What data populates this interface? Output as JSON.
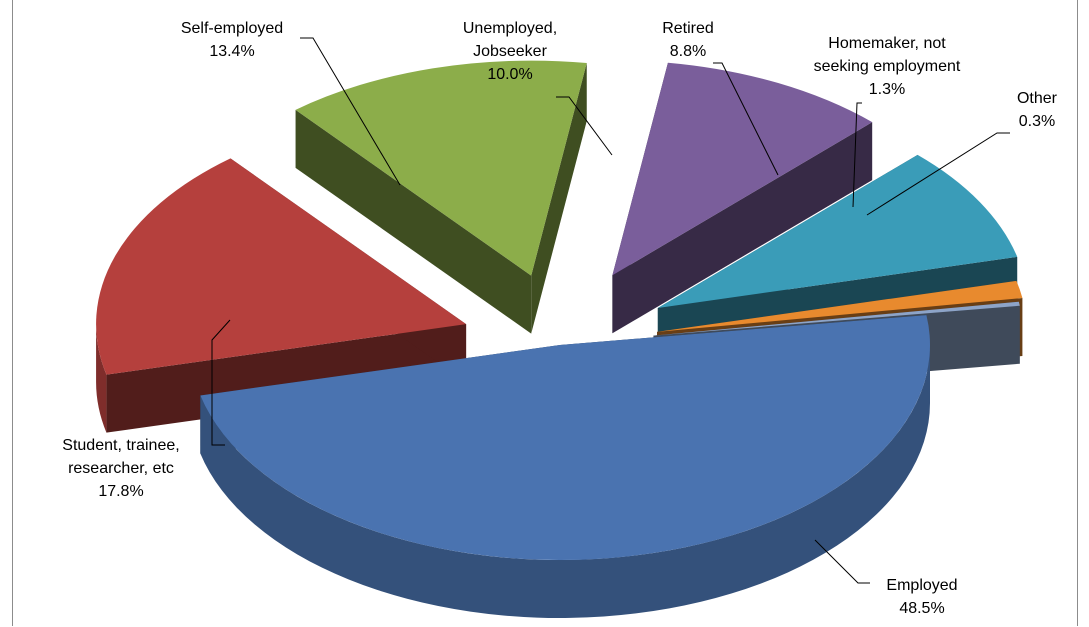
{
  "chart_data": {
    "type": "pie",
    "title": "",
    "three_d": true,
    "exploded": true,
    "slices": [
      {
        "label": "Employed",
        "value": 48.5,
        "value_label": "48.5%",
        "color": "#4a73b0"
      },
      {
        "label": "Student, trainee, researcher, etc",
        "value": 17.8,
        "value_label": "17.8%",
        "color": "#b5403d"
      },
      {
        "label": "Self-employed",
        "value": 13.4,
        "value_label": "13.4%",
        "color": "#8cad4a"
      },
      {
        "label": "Unemployed, Jobseeker",
        "value": 10.0,
        "value_label": "10.0%",
        "color": "#7a5e9b"
      },
      {
        "label": "Retired",
        "value": 8.8,
        "value_label": "8.8%",
        "color": "#3a9cb8"
      },
      {
        "label": "Homemaker, not seeking employment",
        "value": 1.3,
        "value_label": "1.3%",
        "color": "#e88a2e"
      },
      {
        "label": "Other",
        "value": 0.3,
        "value_label": "0.3%",
        "color": "#8da4c8"
      }
    ],
    "legend": "none",
    "data_labels": "category name and percentage with leader lines"
  }
}
